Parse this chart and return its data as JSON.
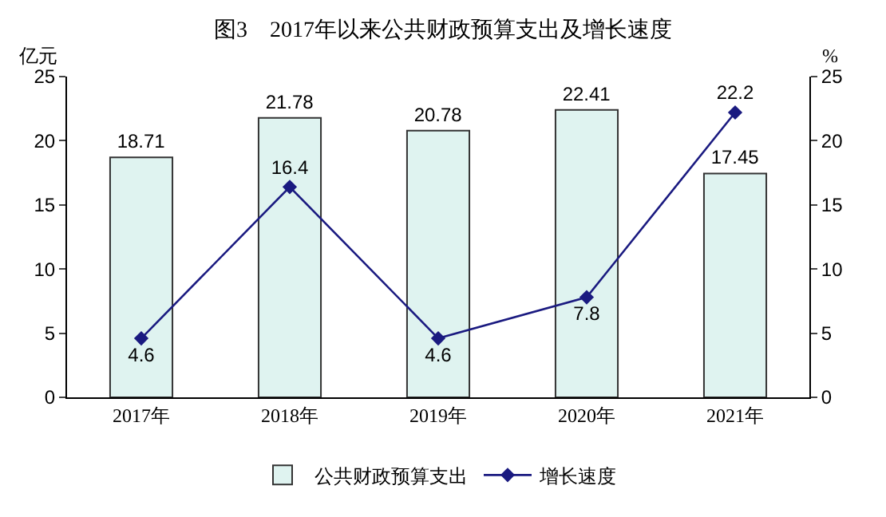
{
  "chart_data": {
    "type": "bar",
    "title": "图3　2017年以来公共财政预算支出及增长速度",
    "categories": [
      "2017年",
      "2018年",
      "2019年",
      "2020年",
      "2021年"
    ],
    "series": [
      {
        "name": "公共财政预算支出",
        "color": "#dff3f0",
        "values": [
          18.71,
          21.78,
          20.78,
          22.41,
          17.45
        ]
      },
      {
        "name": "增长速度",
        "type": "line",
        "axis": "y2",
        "color": "#1a1a80",
        "values": [
          4.6,
          16.4,
          4.6,
          7.8,
          22.2
        ]
      }
    ],
    "ylabel": "亿元",
    "y2label": "%",
    "ylim": [
      0,
      25
    ],
    "yticks": [
      0,
      5,
      10,
      15,
      20,
      25
    ],
    "y2lim": [
      0,
      25
    ],
    "y2ticks": [
      0,
      5,
      10,
      15,
      20,
      25
    ],
    "data_labels": true,
    "marker": "diamond",
    "grid": false,
    "legend": "bottom"
  }
}
